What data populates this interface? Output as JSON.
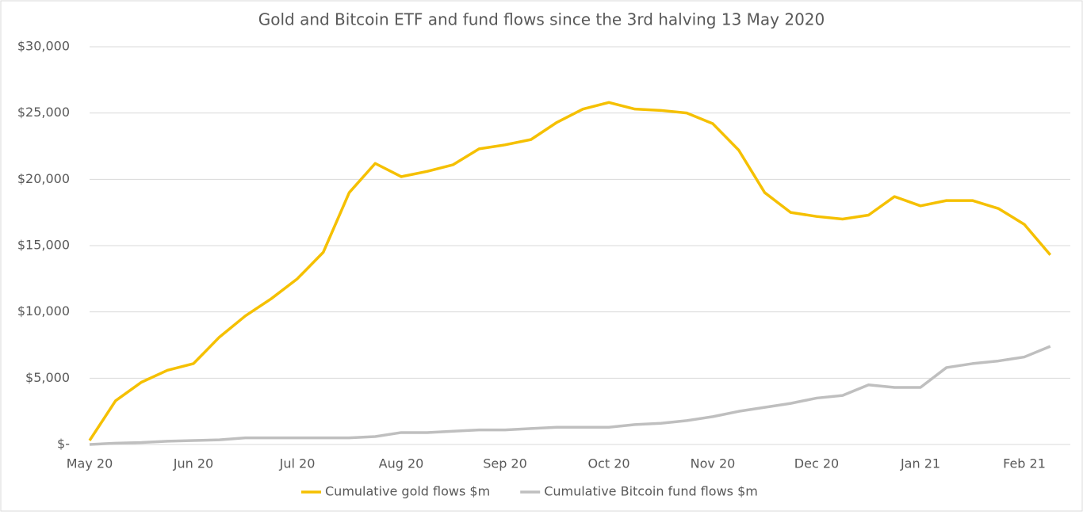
{
  "chart_data": {
    "type": "line",
    "title": "Gold and Bitcoin ETF and fund flows since the 3rd halving 13 May 2020",
    "categories": [
      "May 20",
      null,
      null,
      null,
      "Jun 20",
      null,
      null,
      null,
      "Jul 20",
      null,
      null,
      null,
      "Aug 20",
      null,
      null,
      null,
      "Sep 20",
      null,
      null,
      null,
      "Oct 20",
      null,
      null,
      null,
      "Nov 20",
      null,
      null,
      null,
      "Dec 20",
      null,
      null,
      null,
      "Jan 21",
      null,
      null,
      null,
      "Feb 21",
      null
    ],
    "series": [
      {
        "name": "Cumulative gold flows $m",
        "color": "#f5c000",
        "values": [
          300,
          3300,
          4700,
          5600,
          6100,
          8100,
          9700,
          11000,
          12500,
          14500,
          19000,
          21200,
          20200,
          20600,
          21100,
          22300,
          22600,
          23000,
          24300,
          25300,
          25800,
          25300,
          25200,
          25000,
          24200,
          22200,
          19000,
          17500,
          17200,
          17000,
          17300,
          18700,
          18000,
          18400,
          18400,
          17800,
          16600,
          14300
        ]
      },
      {
        "name": "Cumulative Bitcoin fund flows $m",
        "color": "#bfbfbf",
        "values": [
          0,
          100,
          150,
          250,
          300,
          350,
          500,
          500,
          500,
          500,
          500,
          600,
          900,
          900,
          1000,
          1100,
          1100,
          1200,
          1300,
          1300,
          1300,
          1500,
          1600,
          1800,
          2100,
          2500,
          2800,
          3100,
          3500,
          3700,
          4500,
          4300,
          4300,
          5800,
          6100,
          6300,
          6600,
          7400
        ]
      }
    ],
    "ylim": [
      0,
      30000
    ],
    "yticks": [
      {
        "value": 0,
        "label": "$-"
      },
      {
        "value": 5000,
        "label": "$5,000"
      },
      {
        "value": 10000,
        "label": "$10,000"
      },
      {
        "value": 15000,
        "label": "$15,000"
      },
      {
        "value": 20000,
        "label": "$20,000"
      },
      {
        "value": 25000,
        "label": "$25,000"
      },
      {
        "value": 30000,
        "label": "$30,000"
      }
    ],
    "grid": true,
    "legend": "bottom"
  }
}
